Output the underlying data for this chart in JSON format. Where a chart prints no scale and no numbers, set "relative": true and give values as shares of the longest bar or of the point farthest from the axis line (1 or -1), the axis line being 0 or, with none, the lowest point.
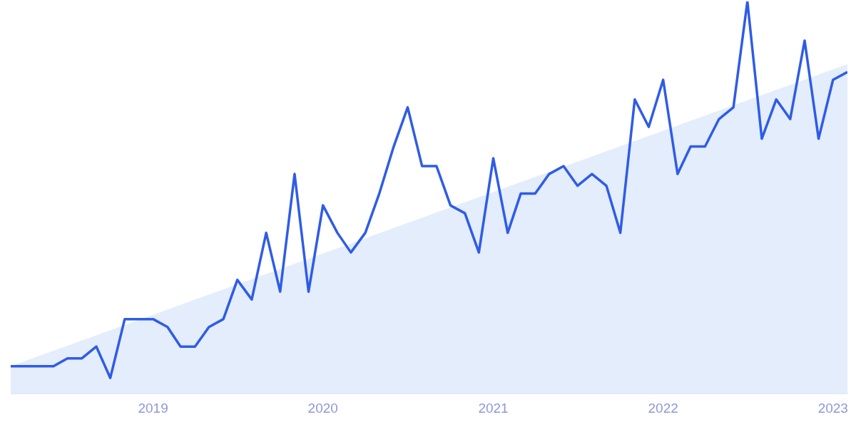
{
  "chart_data": {
    "type": "line",
    "relative": true,
    "legend": false,
    "marker": "none",
    "line_style": "solid",
    "xlim": [
      "2018-03",
      "2023-02"
    ],
    "xticks": [
      "2019",
      "2020",
      "2021",
      "2022",
      "2023"
    ],
    "series": [
      {
        "type": "area",
        "color": "#e3edfb",
        "x": [
          "2018-03",
          "2023-02"
        ],
        "values": [
          0.07,
          0.84
        ]
      },
      {
        "color": "#2f5ce6",
        "x": [
          "2018-03",
          "2018-04",
          "2018-05",
          "2018-06",
          "2018-07",
          "2018-08",
          "2018-09",
          "2018-10",
          "2018-11",
          "2018-12",
          "2019-01",
          "2019-02",
          "2019-03",
          "2019-04",
          "2019-05",
          "2019-06",
          "2019-07",
          "2019-08",
          "2019-09",
          "2019-10",
          "2019-11",
          "2019-12",
          "2020-01",
          "2020-02",
          "2020-03",
          "2020-04",
          "2020-05",
          "2020-06",
          "2020-07",
          "2020-08",
          "2020-09",
          "2020-10",
          "2020-11",
          "2020-12",
          "2021-01",
          "2021-02",
          "2021-03",
          "2021-04",
          "2021-05",
          "2021-06",
          "2021-07",
          "2021-08",
          "2021-09",
          "2021-10",
          "2021-11",
          "2021-12",
          "2022-01",
          "2022-02",
          "2022-03",
          "2022-04",
          "2022-05",
          "2022-06",
          "2022-07",
          "2022-08",
          "2022-09",
          "2022-10",
          "2022-11",
          "2022-12",
          "2023-01",
          "2023-02"
        ],
        "values": [
          0.07,
          0.07,
          0.07,
          0.07,
          0.09,
          0.09,
          0.12,
          0.04,
          0.19,
          0.19,
          0.19,
          0.17,
          0.12,
          0.12,
          0.17,
          0.19,
          0.29,
          0.24,
          0.41,
          0.26,
          0.56,
          0.26,
          0.48,
          0.41,
          0.36,
          0.41,
          0.51,
          0.63,
          0.73,
          0.58,
          0.58,
          0.48,
          0.46,
          0.36,
          0.6,
          0.41,
          0.51,
          0.51,
          0.56,
          0.58,
          0.53,
          0.56,
          0.53,
          0.41,
          0.75,
          0.68,
          0.8,
          0.56,
          0.63,
          0.63,
          0.7,
          0.73,
          1,
          0.65,
          0.75,
          0.7,
          0.9,
          0.65,
          0.8,
          0.82
        ]
      }
    ]
  }
}
